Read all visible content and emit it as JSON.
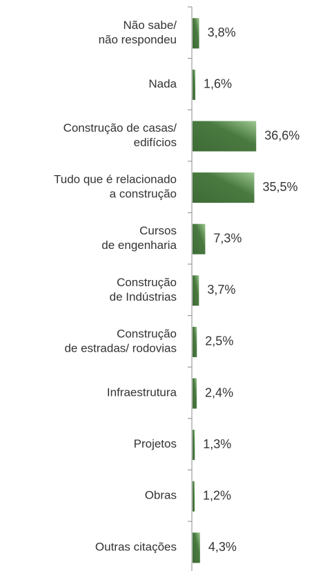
{
  "chart_data": {
    "type": "bar",
    "orientation": "horizontal",
    "categories": [
      "Não sabe/\nnão respondeu",
      "Nada",
      "Construção de casas/\nedifícios",
      "Tudo que é relacionado\na construção",
      "Cursos\nde engenharia",
      "Construção\nde Indústrias",
      "Construção\nde estradas/ rodovias",
      "Infraestrutura",
      "Projetos",
      "Obras",
      "Outras citações"
    ],
    "values": [
      3.8,
      1.6,
      36.6,
      35.5,
      7.3,
      3.7,
      2.5,
      2.4,
      1.3,
      1.2,
      4.3
    ],
    "value_labels": [
      "3,8%",
      "1,6%",
      "36,6%",
      "35,5%",
      "7,3%",
      "3,7%",
      "2,5%",
      "2,4%",
      "1,3%",
      "1,2%",
      "4,3%"
    ],
    "color": "#3e6b36"
  }
}
